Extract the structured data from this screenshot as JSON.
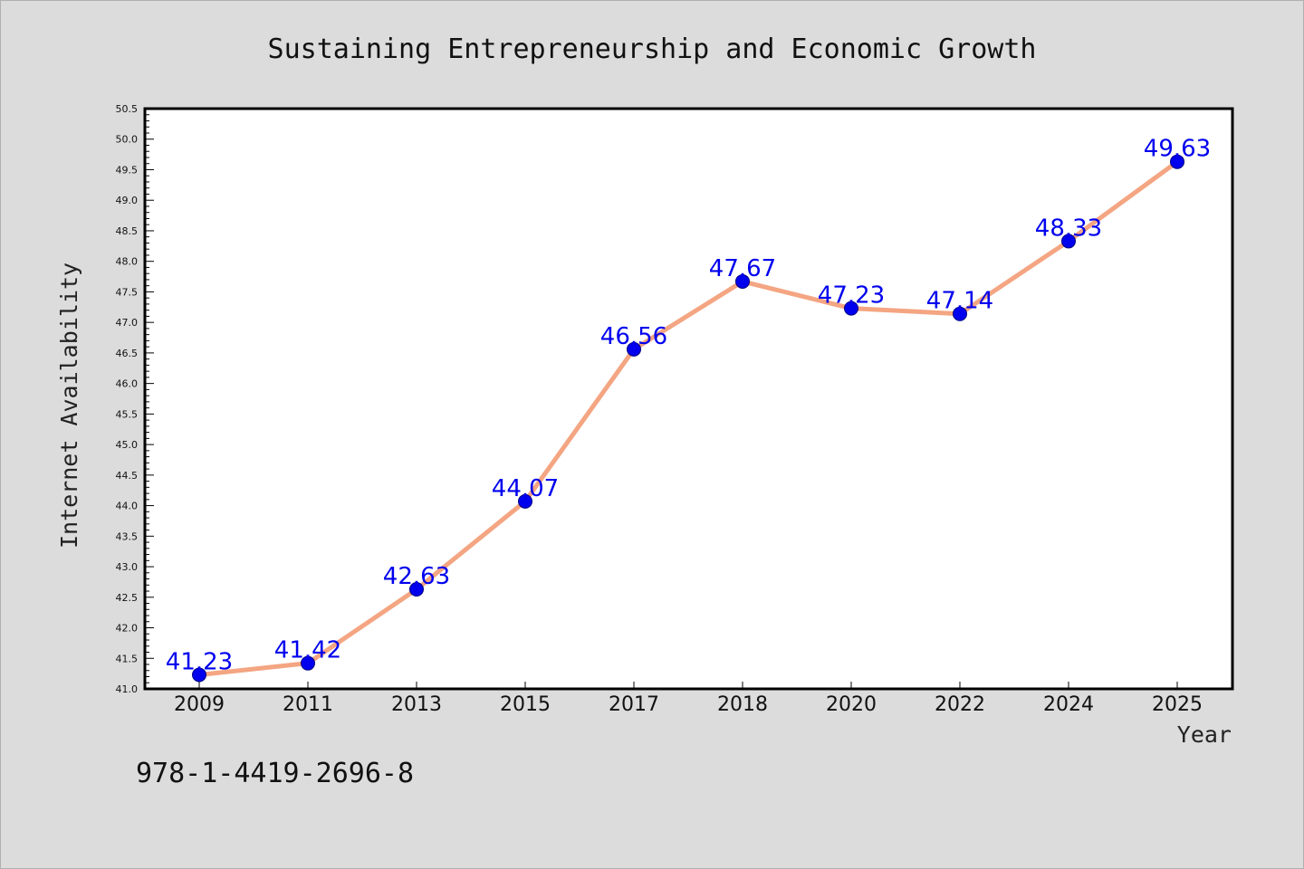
{
  "chart_data": {
    "type": "line",
    "title": "Sustaining Entrepreneurship and Economic Growth",
    "xlabel": "Year",
    "ylabel": "Internet Availability",
    "categories": [
      "2009",
      "2011",
      "2013",
      "2015",
      "2017",
      "2018",
      "2020",
      "2022",
      "2024",
      "2025"
    ],
    "series": [
      {
        "values": [
          41.23,
          41.42,
          42.63,
          44.07,
          46.56,
          47.67,
          47.23,
          47.14,
          48.33,
          49.63
        ],
        "labels": [
          "41.23",
          "41.42",
          "42.63",
          "44.07",
          "46.56",
          "47.67",
          "47.23",
          "47.14",
          "48.33",
          "49.63"
        ]
      }
    ],
    "ylim": [
      41.0,
      50.5
    ],
    "y_ticks": [
      "41.0",
      "41.5",
      "42.0",
      "42.5",
      "43.0",
      "43.5",
      "44.0",
      "44.5",
      "45.0",
      "45.5",
      "46.0",
      "46.5",
      "47.0",
      "47.5",
      "48.0",
      "48.5",
      "49.0",
      "49.5",
      "50.0",
      "50.5"
    ],
    "grid": false,
    "colors": {
      "line": "#f4a582",
      "marker": "#0000ee",
      "label": "#0000ee",
      "plot_background": "#ffffff",
      "figure_background": "#dcdcdc"
    }
  },
  "annotation": {
    "isbn": "978-1-4419-2696-8"
  }
}
